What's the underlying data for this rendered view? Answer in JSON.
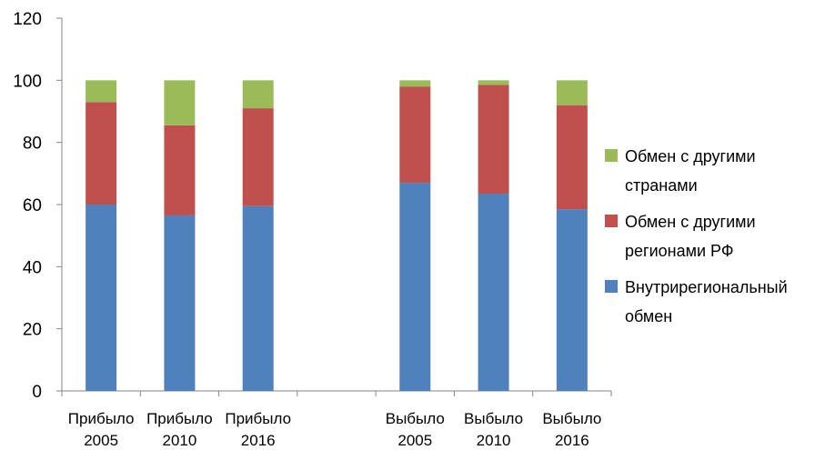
{
  "chart_data": {
    "type": "bar",
    "stacked": true,
    "categories": [
      {
        "line1": "Прибыло",
        "line2": "2005"
      },
      {
        "line1": "Прибыло",
        "line2": "2010"
      },
      {
        "line1": "Прибыло",
        "line2": "2016"
      },
      {
        "line1": "",
        "line2": ""
      },
      {
        "line1": "Выбыло",
        "line2": "2005"
      },
      {
        "line1": "Выбыло",
        "line2": "2010"
      },
      {
        "line1": "Выбыло",
        "line2": "2016"
      }
    ],
    "series": [
      {
        "name": "Внутрирегиональный обмен",
        "name_lines": [
          "Внутрирегиональный",
          "обмен"
        ],
        "color": "#4F81BD",
        "values": [
          60,
          56.5,
          59.5,
          null,
          67,
          63.5,
          58.5
        ]
      },
      {
        "name": "Обмен с другими регионами РФ",
        "name_lines": [
          "Обмен с другими",
          "регионами РФ"
        ],
        "color": "#C0504D",
        "values": [
          33,
          29,
          31.5,
          null,
          31,
          35,
          33.5
        ]
      },
      {
        "name": "Обмен с другими странами",
        "name_lines": [
          "Обмен с другими",
          "странами"
        ],
        "color": "#9BBB59",
        "values": [
          7,
          14.5,
          9,
          null,
          2,
          1.5,
          8
        ]
      }
    ],
    "title": "",
    "xlabel": "",
    "ylabel": "",
    "ylim": [
      0,
      120
    ],
    "yticks": [
      "0",
      "20",
      "40",
      "60",
      "80",
      "100",
      "120"
    ],
    "grid": false,
    "legend_position": "right",
    "legend_order": [
      "Обмен с другими странами",
      "Обмен с другими регионами РФ",
      "Внутрирегиональный обмен"
    ]
  }
}
